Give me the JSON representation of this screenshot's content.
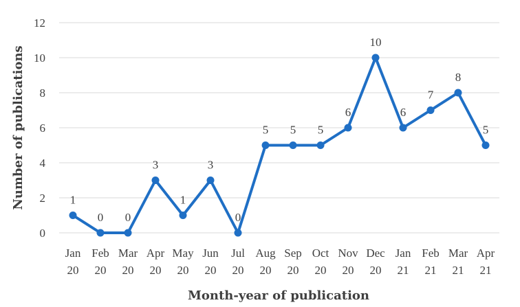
{
  "chart_data": {
    "type": "line",
    "xlabel": "Month-year of publication",
    "ylabel": "Number of publications",
    "ylim": [
      0,
      12
    ],
    "yticks": [
      0,
      2,
      4,
      6,
      8,
      10,
      12
    ],
    "grid": true,
    "color": "#1f6fc5",
    "categories": [
      [
        "Jan",
        "20"
      ],
      [
        "Feb",
        "20"
      ],
      [
        "Mar",
        "20"
      ],
      [
        "Apr",
        "20"
      ],
      [
        "May",
        "20"
      ],
      [
        "Jun",
        "20"
      ],
      [
        "Jul",
        "20"
      ],
      [
        "Aug",
        "20"
      ],
      [
        "Sep",
        "20"
      ],
      [
        "Oct",
        "20"
      ],
      [
        "Nov",
        "20"
      ],
      [
        "Dec",
        "20"
      ],
      [
        "Jan",
        "21"
      ],
      [
        "Feb",
        "21"
      ],
      [
        "Mar",
        "21"
      ],
      [
        "Apr",
        "21"
      ]
    ],
    "values": [
      1,
      0,
      0,
      3,
      1,
      3,
      0,
      5,
      5,
      5,
      6,
      10,
      6,
      7,
      8,
      5
    ]
  }
}
